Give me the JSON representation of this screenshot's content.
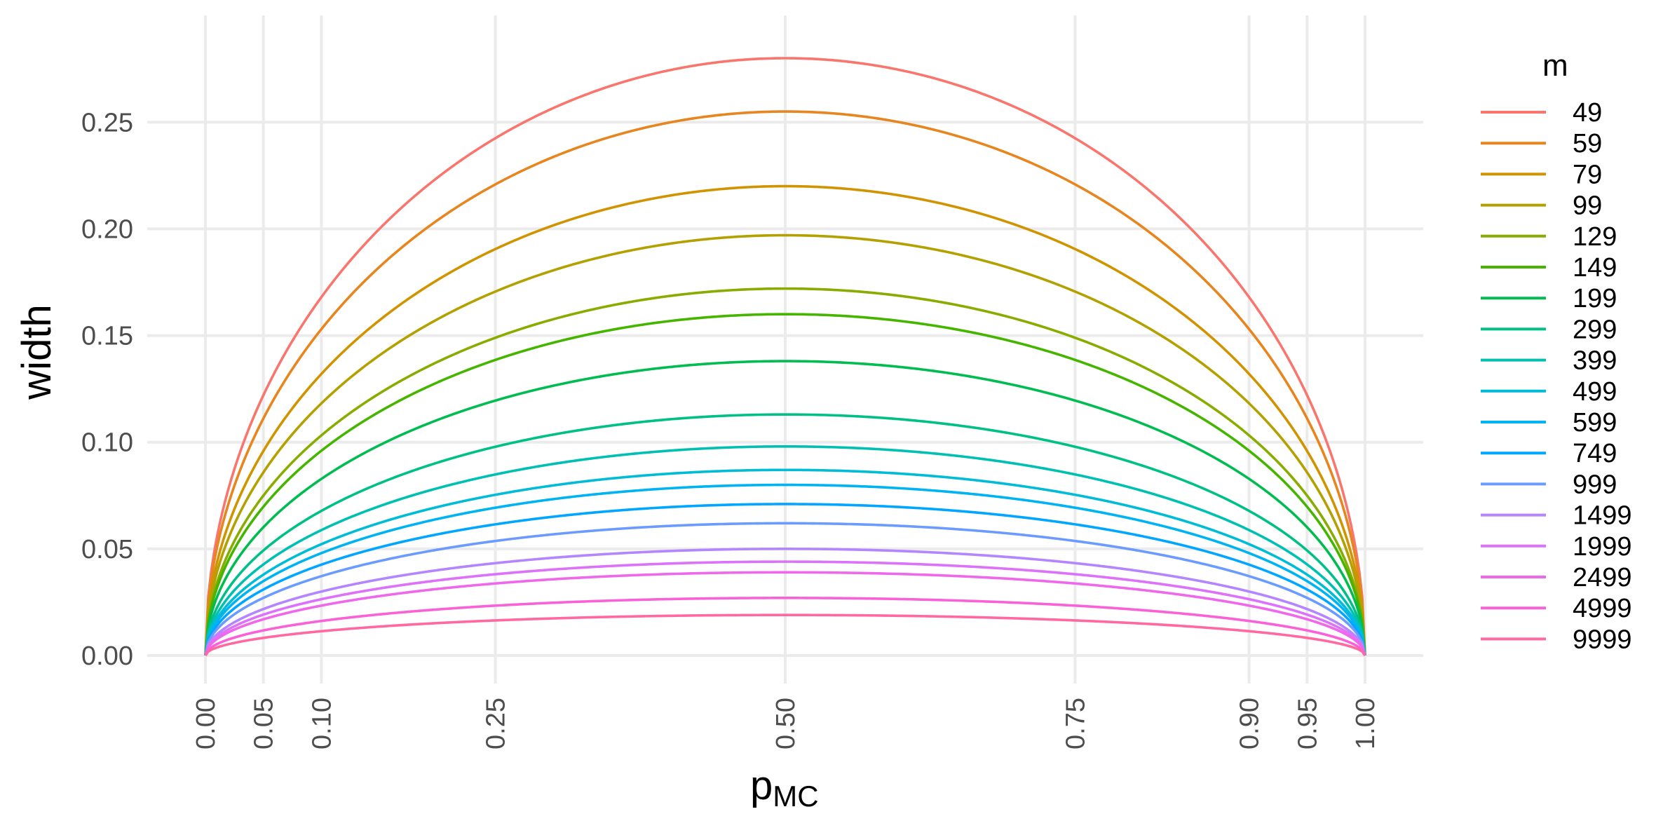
{
  "chart_data": {
    "type": "line",
    "title": "",
    "xlabel": "p",
    "xlabel_sub": "MC",
    "ylabel": "width",
    "xlim": [
      0,
      1
    ],
    "ylim": [
      0,
      0.28
    ],
    "x_ticks": [
      0.0,
      0.05,
      0.1,
      0.25,
      0.5,
      0.75,
      0.9,
      0.95,
      1.0
    ],
    "x_tick_labels": [
      "0.00",
      "0.05",
      "0.10",
      "0.25",
      "0.50",
      "0.75",
      "0.90",
      "0.95",
      "1.00"
    ],
    "y_ticks": [
      0.0,
      0.05,
      0.1,
      0.15,
      0.2,
      0.25
    ],
    "y_tick_labels": [
      "0.00",
      "0.05",
      "0.10",
      "0.15",
      "0.20",
      "0.25"
    ],
    "x": [
      0.0,
      0.01,
      0.05,
      0.1,
      0.25,
      0.5,
      0.75,
      0.9,
      0.95,
      0.99,
      1.0
    ],
    "grid": true,
    "legend": {
      "title": "m",
      "position": "right"
    },
    "series": [
      {
        "name": "49",
        "color": "#F8766D",
        "peak": 0.28,
        "values": [
          0,
          0.0557,
          0.1221,
          0.1681,
          0.2425,
          0.28,
          0.2425,
          0.1681,
          0.1221,
          0.0557,
          0
        ]
      },
      {
        "name": "59",
        "color": "#E7851E",
        "peak": 0.255,
        "values": [
          0,
          0.0507,
          0.1111,
          0.153,
          0.2208,
          0.255,
          0.2208,
          0.153,
          0.1111,
          0.0507,
          0
        ]
      },
      {
        "name": "79",
        "color": "#D09400",
        "peak": 0.22,
        "values": [
          0,
          0.0438,
          0.0959,
          0.132,
          0.1905,
          0.22,
          0.1905,
          0.132,
          0.0959,
          0.0438,
          0
        ]
      },
      {
        "name": "99",
        "color": "#B2A100",
        "peak": 0.197,
        "values": [
          0,
          0.0392,
          0.0859,
          0.1182,
          0.1706,
          0.197,
          0.1706,
          0.1182,
          0.0859,
          0.0392,
          0
        ]
      },
      {
        "name": "129",
        "color": "#89AC00",
        "peak": 0.172,
        "values": [
          0,
          0.0342,
          0.075,
          0.1032,
          0.149,
          0.172,
          0.149,
          0.1032,
          0.075,
          0.0342,
          0
        ]
      },
      {
        "name": "149",
        "color": "#45B500",
        "peak": 0.16,
        "values": [
          0,
          0.0318,
          0.0698,
          0.096,
          0.1386,
          0.16,
          0.1386,
          0.096,
          0.0698,
          0.0318,
          0
        ]
      },
      {
        "name": "199",
        "color": "#00BC51",
        "peak": 0.138,
        "values": [
          0,
          0.0275,
          0.0602,
          0.0828,
          0.1195,
          0.138,
          0.1195,
          0.0828,
          0.0602,
          0.0275,
          0
        ]
      },
      {
        "name": "299",
        "color": "#00C087",
        "peak": 0.113,
        "values": [
          0,
          0.0225,
          0.0493,
          0.0678,
          0.0979,
          0.113,
          0.0979,
          0.0678,
          0.0493,
          0.0225,
          0
        ]
      },
      {
        "name": "399",
        "color": "#00C0B2",
        "peak": 0.098,
        "values": [
          0,
          0.0195,
          0.0427,
          0.0588,
          0.0849,
          0.098,
          0.0849,
          0.0588,
          0.0427,
          0.0195,
          0
        ]
      },
      {
        "name": "499",
        "color": "#00BCD6",
        "peak": 0.087,
        "values": [
          0,
          0.0173,
          0.0379,
          0.0522,
          0.0753,
          0.087,
          0.0753,
          0.0522,
          0.0379,
          0.0173,
          0
        ]
      },
      {
        "name": "599",
        "color": "#00B3F2",
        "peak": 0.08,
        "values": [
          0,
          0.0159,
          0.0349,
          0.048,
          0.0693,
          0.08,
          0.0693,
          0.048,
          0.0349,
          0.0159,
          0
        ]
      },
      {
        "name": "749",
        "color": "#00A6FF",
        "peak": 0.071,
        "values": [
          0,
          0.0141,
          0.031,
          0.0426,
          0.0615,
          0.071,
          0.0615,
          0.0426,
          0.031,
          0.0141,
          0
        ]
      },
      {
        "name": "999",
        "color": "#6C9BFF",
        "peak": 0.062,
        "values": [
          0,
          0.0123,
          0.027,
          0.0372,
          0.0537,
          0.062,
          0.0537,
          0.0372,
          0.027,
          0.0123,
          0
        ]
      },
      {
        "name": "1499",
        "color": "#B385FF",
        "peak": 0.05,
        "values": [
          0,
          0.0099,
          0.0218,
          0.03,
          0.0433,
          0.05,
          0.0433,
          0.03,
          0.0218,
          0.0099,
          0
        ]
      },
      {
        "name": "1999",
        "color": "#DC71FA",
        "peak": 0.044,
        "values": [
          0,
          0.0088,
          0.0192,
          0.0264,
          0.0381,
          0.044,
          0.0381,
          0.0264,
          0.0192,
          0.0088,
          0
        ]
      },
      {
        "name": "2499",
        "color": "#EF67EB",
        "peak": 0.039,
        "values": [
          0,
          0.0078,
          0.017,
          0.0234,
          0.0338,
          0.039,
          0.0338,
          0.0234,
          0.017,
          0.0078,
          0
        ]
      },
      {
        "name": "4999",
        "color": "#FB61D7",
        "peak": 0.027,
        "values": [
          0,
          0.0054,
          0.0118,
          0.0162,
          0.0234,
          0.027,
          0.0234,
          0.0162,
          0.0118,
          0.0054,
          0
        ]
      },
      {
        "name": "9999",
        "color": "#FF68A1",
        "peak": 0.019,
        "values": [
          0,
          0.0038,
          0.0083,
          0.0114,
          0.0165,
          0.019,
          0.0165,
          0.0114,
          0.0083,
          0.0038,
          0
        ]
      }
    ]
  }
}
